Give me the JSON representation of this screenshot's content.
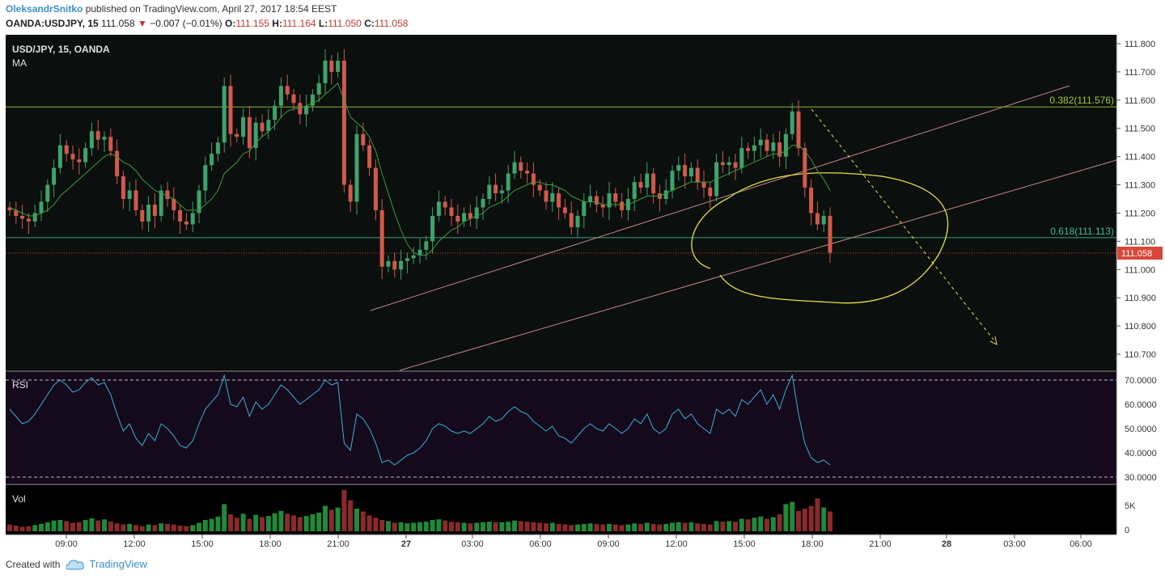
{
  "header": {
    "author": "OleksandrSnitko",
    "published_text": " published on TradingView.com, April 27, 2017 18:54 EEST",
    "symbol": "OANDA:USDJPY, 15",
    "last": "111.058",
    "change_arrow": "▼",
    "change": "−0.007 (−0.01%)",
    "o_label": "O:",
    "o_value": "111.155",
    "h_label": "H:",
    "h_value": "111.164",
    "l_label": "L:",
    "l_value": "111.050",
    "c_label": "C:",
    "c_value": "111.058"
  },
  "footer": {
    "created_with": "Created with",
    "brand": "TradingView",
    "logo_icon": "tradingview-cloud-icon"
  },
  "chart_data": {
    "type": "candlestick",
    "title": "USD/JPY, 15, OANDA",
    "indicator_label": "MA",
    "colors": {
      "up": "#3fa36b",
      "down": "#d05a4a",
      "ma": "#3e9a3e",
      "rsi": "#3aaed8",
      "fib": "#9ccf3a",
      "annotation": "#e8e04a",
      "channel": "#c08a8a",
      "last_price": "#d9463a"
    },
    "y_ticks": [
      "111.800",
      "111.700",
      "111.600",
      "111.500",
      "111.400",
      "111.300",
      "111.200",
      "111.100",
      "111.000",
      "110.900",
      "110.800",
      "110.700"
    ],
    "x_ticks": [
      "09:00",
      "12:00",
      "15:00",
      "18:00",
      "21:00",
      "27",
      "03:00",
      "06:00",
      "09:00",
      "12:00",
      "15:00",
      "18:00",
      "21:00",
      "28",
      "03:00",
      "06:00"
    ],
    "last_price_label": "111.058",
    "fib_levels": [
      {
        "label": "0.382(111.576)",
        "value": 111.576
      },
      {
        "label": "0.618(111.113)",
        "value": 111.113
      }
    ],
    "close": [
      111.21,
      111.19,
      111.18,
      111.17,
      111.2,
      111.24,
      111.3,
      111.36,
      111.44,
      111.41,
      111.39,
      111.38,
      111.43,
      111.49,
      111.46,
      111.47,
      111.42,
      111.33,
      111.25,
      111.28,
      111.21,
      111.17,
      111.23,
      111.19,
      111.28,
      111.25,
      111.21,
      111.17,
      111.16,
      111.2,
      111.28,
      111.37,
      111.41,
      111.45,
      111.65,
      111.48,
      111.47,
      111.54,
      111.43,
      111.52,
      111.49,
      111.53,
      111.58,
      111.65,
      111.62,
      111.59,
      111.55,
      111.58,
      111.62,
      111.66,
      111.74,
      111.7,
      111.74,
      111.3,
      111.24,
      111.48,
      111.44,
      111.36,
      111.21,
      111.01,
      111.03,
      111.0,
      111.03,
      111.04,
      111.05,
      111.07,
      111.1,
      111.19,
      111.24,
      111.22,
      111.19,
      111.17,
      111.2,
      111.18,
      111.22,
      111.25,
      111.3,
      111.27,
      111.28,
      111.34,
      111.38,
      111.35,
      111.34,
      111.3,
      111.28,
      111.24,
      111.27,
      111.22,
      111.2,
      111.15,
      111.19,
      111.24,
      111.26,
      111.23,
      111.22,
      111.27,
      111.24,
      111.21,
      111.25,
      111.31,
      111.29,
      111.34,
      111.27,
      111.25,
      111.28,
      111.35,
      111.37,
      111.33,
      111.36,
      111.31,
      111.29,
      111.26,
      111.38,
      111.37,
      111.38,
      111.36,
      111.43,
      111.42,
      111.44,
      111.46,
      111.42,
      111.45,
      111.4,
      111.48,
      111.56,
      111.43,
      111.29,
      111.2,
      111.16,
      111.19,
      111.06
    ],
    "ma": [
      111.22,
      111.21,
      111.2,
      111.19,
      111.19,
      111.2,
      111.21,
      111.23,
      111.26,
      111.28,
      111.3,
      111.32,
      111.34,
      111.36,
      111.38,
      111.4,
      111.41,
      111.4,
      111.38,
      111.37,
      111.35,
      111.32,
      111.3,
      111.28,
      111.27,
      111.26,
      111.25,
      111.23,
      111.21,
      111.21,
      111.21,
      111.23,
      111.25,
      111.28,
      111.34,
      111.36,
      111.38,
      111.41,
      111.42,
      111.45,
      111.47,
      111.49,
      111.51,
      111.54,
      111.56,
      111.57,
      111.57,
      111.58,
      111.59,
      111.6,
      111.62,
      111.64,
      111.66,
      111.6,
      111.54,
      111.52,
      111.5,
      111.47,
      111.42,
      111.34,
      111.27,
      111.2,
      111.14,
      111.09,
      111.06,
      111.05,
      111.05,
      111.07,
      111.1,
      111.12,
      111.14,
      111.15,
      111.17,
      111.18,
      111.19,
      111.2,
      111.22,
      111.23,
      111.24,
      111.26,
      111.28,
      111.29,
      111.3,
      111.31,
      111.31,
      111.3,
      111.3,
      111.29,
      111.28,
      111.26,
      111.25,
      111.24,
      111.24,
      111.24,
      111.23,
      111.23,
      111.23,
      111.23,
      111.23,
      111.24,
      111.25,
      111.26,
      111.26,
      111.26,
      111.27,
      111.28,
      111.29,
      111.3,
      111.31,
      111.31,
      111.31,
      111.31,
      111.32,
      111.33,
      111.34,
      111.35,
      111.36,
      111.37,
      111.38,
      111.39,
      111.4,
      111.41,
      111.41,
      111.42,
      111.44,
      111.44,
      111.42,
      111.39,
      111.35,
      111.32,
      111.28
    ],
    "rsi": [
      58,
      55,
      52,
      53,
      56,
      60,
      64,
      68,
      70,
      68,
      65,
      66,
      69,
      71,
      68,
      69,
      64,
      56,
      49,
      52,
      46,
      43,
      48,
      45,
      52,
      50,
      47,
      43,
      42,
      45,
      52,
      58,
      61,
      64,
      72,
      60,
      59,
      63,
      55,
      61,
      58,
      60,
      64,
      68,
      66,
      63,
      60,
      62,
      64,
      66,
      70,
      68,
      69,
      44,
      41,
      56,
      54,
      50,
      44,
      36,
      37,
      35,
      37,
      39,
      40,
      42,
      45,
      50,
      52,
      51,
      49,
      48,
      49,
      48,
      50,
      52,
      55,
      53,
      54,
      57,
      59,
      57,
      56,
      53,
      51,
      49,
      51,
      47,
      46,
      44,
      47,
      50,
      52,
      50,
      49,
      52,
      50,
      48,
      50,
      54,
      52,
      56,
      50,
      48,
      50,
      56,
      58,
      54,
      56,
      52,
      50,
      48,
      58,
      56,
      58,
      55,
      62,
      60,
      63,
      66,
      60,
      64,
      58,
      66,
      72,
      56,
      44,
      38,
      36,
      37,
      35
    ],
    "rsi_ticks": [
      "70.0000",
      "60.0000",
      "50.0000",
      "40.0000",
      "30.0000"
    ],
    "rsi_label": "RSI",
    "vol_label": "Vol",
    "vol_ticks": [
      "5K",
      "0"
    ],
    "vol": [
      1.2,
      1.0,
      0.8,
      0.9,
      1.1,
      1.3,
      1.6,
      1.9,
      2.0,
      1.8,
      1.5,
      1.6,
      2.0,
      2.3,
      1.9,
      2.1,
      1.7,
      1.4,
      1.2,
      1.3,
      1.1,
      0.9,
      1.2,
      1.1,
      1.4,
      1.3,
      1.2,
      1.0,
      0.9,
      1.1,
      1.5,
      2.0,
      2.2,
      2.6,
      4.8,
      3.0,
      2.4,
      3.1,
      2.2,
      2.9,
      2.5,
      2.7,
      3.2,
      3.6,
      3.1,
      2.8,
      2.5,
      2.7,
      3.0,
      3.3,
      4.5,
      3.8,
      4.2,
      7.3,
      5.5,
      4.0,
      3.5,
      2.8,
      2.4,
      2.0,
      1.8,
      1.5,
      1.6,
      1.4,
      1.5,
      1.6,
      1.7,
      2.0,
      2.1,
      1.9,
      1.7,
      1.6,
      1.5,
      1.4,
      1.5,
      1.6,
      1.7,
      1.6,
      1.6,
      1.7,
      1.9,
      1.8,
      1.7,
      1.6,
      1.5,
      1.4,
      1.5,
      1.3,
      1.2,
      1.1,
      1.2,
      1.3,
      1.4,
      1.3,
      1.2,
      1.3,
      1.2,
      1.1,
      1.2,
      1.4,
      1.3,
      1.5,
      1.3,
      1.2,
      1.3,
      1.5,
      1.6,
      1.5,
      1.6,
      1.4,
      1.3,
      1.2,
      1.8,
      1.7,
      1.8,
      1.7,
      2.2,
      2.1,
      2.4,
      2.6,
      2.2,
      2.5,
      3.0,
      4.8,
      5.2,
      3.6,
      4.0,
      4.5,
      5.8,
      4.2,
      3.5
    ]
  }
}
